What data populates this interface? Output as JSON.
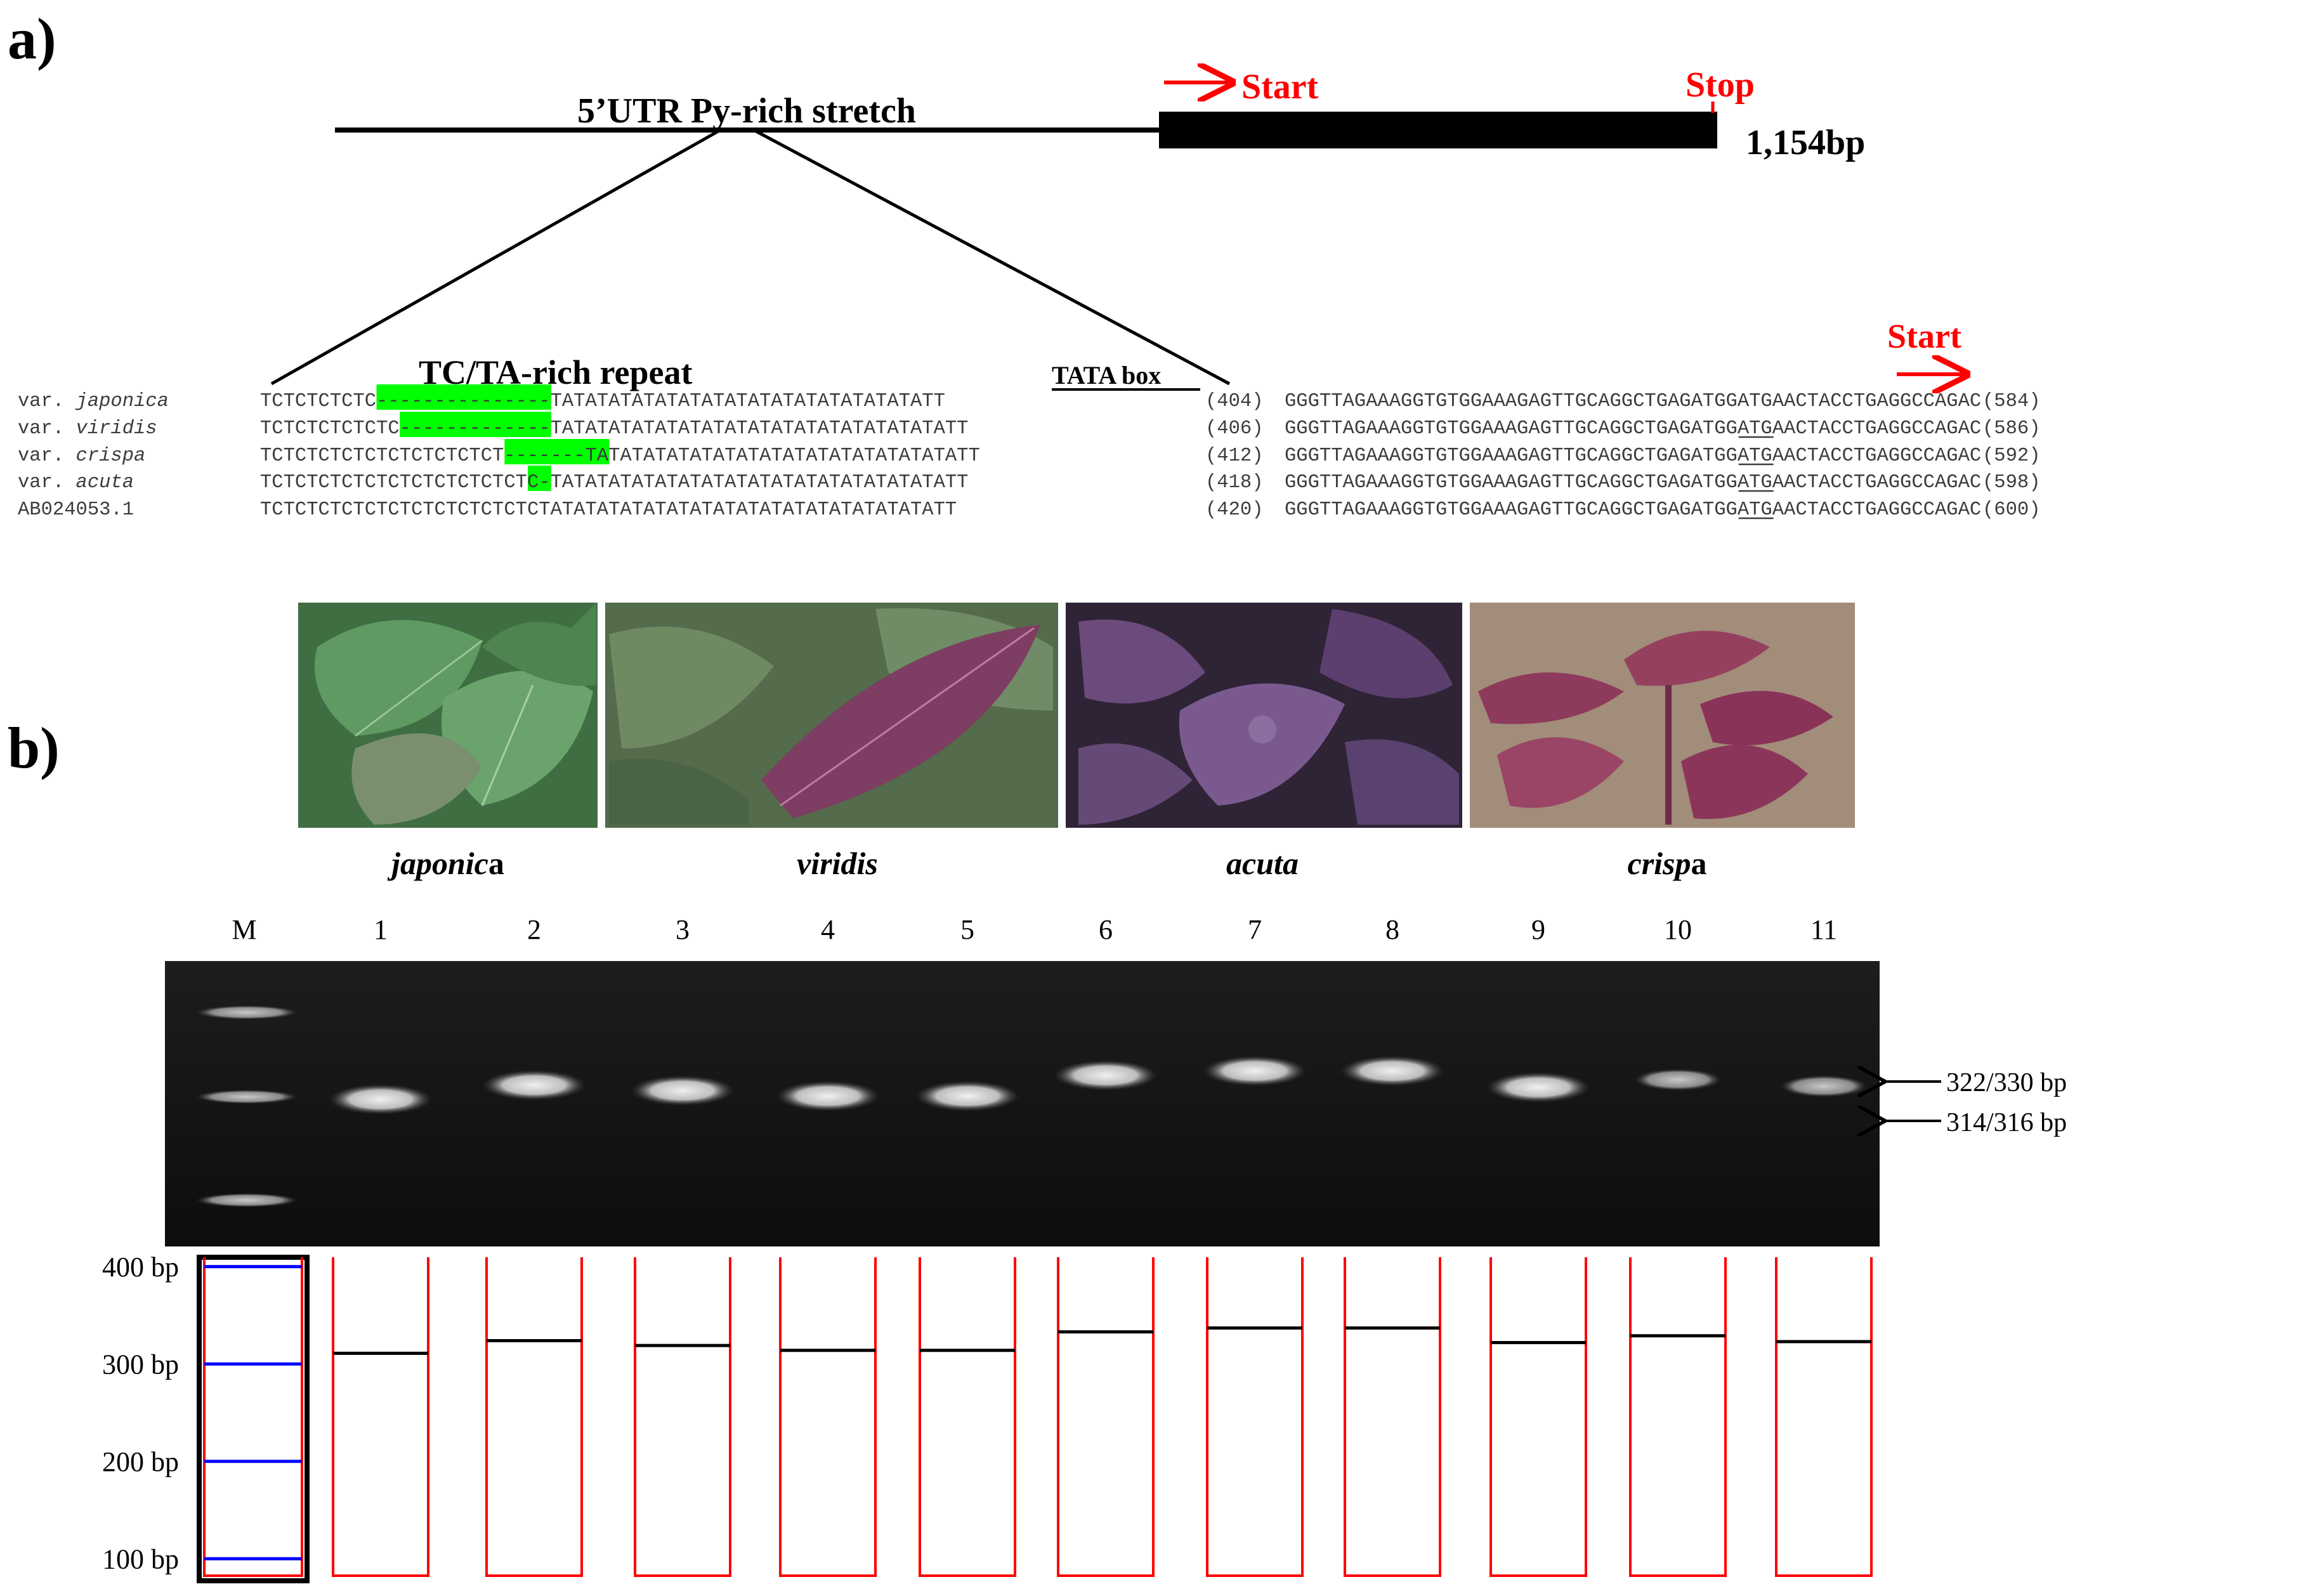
{
  "panel_a": {
    "label": "a)",
    "gene": {
      "utr_label": "5’UTR Py-rich stretch",
      "start_label": "Start",
      "stop_label": "Stop",
      "length_label": "1,154bp"
    },
    "repeat_label": "TC/TA-rich repeat",
    "tata_label": "TATA box",
    "alignment_start_label": "Start",
    "alignment": [
      {
        "prefix": "var.",
        "name": "japonica",
        "seq1": "TCTCTCTCTC---------------TATATATATATATATATATATATATATATATATT",
        "count1": "(404)",
        "seq2": "GGGTTAGAAAGGTGTGGAAAGAGTTGCAGGCTGAGATGGATGAACTACCTGAGGCCAGAC",
        "count2": "(584)",
        "gap_start": 10,
        "gap_len": 15
      },
      {
        "prefix": "var.",
        "name": "viridis",
        "seq1": "TCTCTCTCTCTC-------------TATATATATATATATATATATATATATATATATATT",
        "count1": "(406)",
        "seq2": "GGGTTAGAAAGGTGTGGAAAGAGTTGCAGGCTGAGATGGATGAACTACCTGAGGCCAGAC",
        "count2": "(586)",
        "gap_start": 12,
        "gap_len": 13
      },
      {
        "prefix": "var.",
        "name": "crispa",
        "seq1": "TCTCTCTCTCTCTCTCTCTCT-------TATATATATATATATATATATATATATATATATT",
        "count1": "(412)",
        "seq2": "GGGTTAGAAAGGTGTGGAAAGAGTTGCAGGCTGAGATGGATGAACTACCTGAGGCCAGAC",
        "count2": "(592)",
        "gap_start": 21,
        "gap_len": 7
      },
      {
        "prefix": "var.",
        "name": "acuta",
        "seq1": "TCTCTCTCTCTCTCTCTCTCTCTC-TATATATATATATATATATATATATATATATATATT",
        "count1": "(418)",
        "seq2": "GGGTTAGAAAGGTGTGGAAAGAGTTGCAGGCTGAGATGGATGAACTACCTGAGGCCAGAC",
        "count2": "(598)",
        "gap_start": 23,
        "gap_len": 2
      },
      {
        "prefix": "",
        "name": "AB024053.1",
        "seq1": "TCTCTCTCTCTCTCTCTCTCTCTCTATATATATATATATATATATATATATATATATATT",
        "count1": "(420)",
        "seq2": "GGGTTAGAAAGGTGTGGAAAGAGTTGCAGGCTGAGATGGATGAACTACCTGAGGCCAGAC",
        "count2": "(600)",
        "gap_start": 0,
        "gap_len": 0
      }
    ],
    "highlight_color": "#00ff00"
  },
  "panel_b": {
    "label": "b)",
    "photos": [
      {
        "caption_italic": "japonic",
        "caption_plain": "a",
        "leaf_color": "#4f8a52",
        "bg_color": "#365c38"
      },
      {
        "caption_italic": "viridis",
        "caption_plain": "",
        "leaf_color": "#7a3a5a",
        "bg_color": "#4d6b47"
      },
      {
        "caption_italic": "acuta",
        "caption_plain": "",
        "leaf_color": "#5a3a6e",
        "bg_color": "#2b2030"
      },
      {
        "caption_italic": "crisp",
        "caption_plain": "a",
        "leaf_color": "#8a3555",
        "bg_color": "#a08a78"
      }
    ],
    "gel": {
      "lane_labels": [
        "M",
        "1",
        "2",
        "3",
        "4",
        "5",
        "6",
        "7",
        "8",
        "9",
        "10",
        "11"
      ],
      "arrow_labels": [
        "322/330 bp",
        "314/316 bp"
      ]
    },
    "diagram": {
      "ladder_labels": [
        "400 bp",
        "300 bp",
        "200 bp",
        "100 bp"
      ],
      "ladder_values": [
        400,
        300,
        200,
        100
      ],
      "lane_band_sizes_bp": [
        311,
        324,
        319,
        314,
        314,
        333,
        337,
        337,
        322,
        329,
        323
      ],
      "lane_color": "#ff0000",
      "ladder_color": "#0000ff"
    }
  }
}
